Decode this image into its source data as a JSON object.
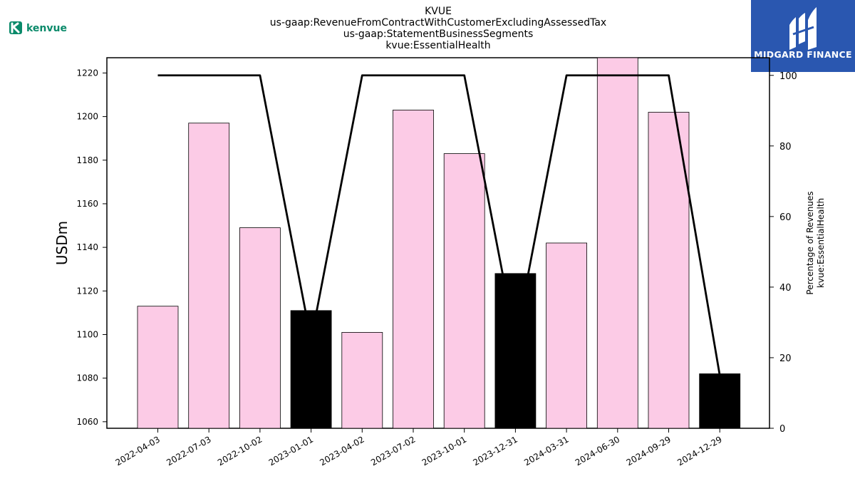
{
  "logos": {
    "left_brand": "kenvue",
    "right_brand": "MIDGARD FINANCE",
    "right_brand_color": "#2a57b0",
    "left_brand_color": "#0a8a6a"
  },
  "chart_data": {
    "type": "bar",
    "title_lines": [
      "KVUE",
      "us-gaap:RevenueFromContractWithCustomerExcludingAssessedTax",
      "us-gaap:StatementBusinessSegments",
      "kvue:EssentialHealth"
    ],
    "ylabel": "USDm",
    "ylabel_right": [
      "Percentage of Revenues",
      "kvue:EssentialHealth"
    ],
    "categories": [
      "2022-04-03",
      "2022-07-03",
      "2022-10-02",
      "2023-01-01",
      "2023-04-02",
      "2023-07-02",
      "2023-10-01",
      "2023-12-31",
      "2024-03-31",
      "2024-06-30",
      "2024-09-29",
      "2024-12-29"
    ],
    "series": [
      {
        "type": "bar",
        "values": [
          1113,
          1197,
          1149,
          1111,
          1101,
          1203,
          1183,
          1128,
          1142,
          1228,
          1202,
          1082
        ],
        "colors": [
          "#fccbe6",
          "#fccbe6",
          "#fccbe6",
          "#000000",
          "#fccbe6",
          "#fccbe6",
          "#fccbe6",
          "#000000",
          "#fccbe6",
          "#fccbe6",
          "#fccbe6",
          "#000000"
        ]
      },
      {
        "type": "line",
        "axis": "right",
        "color": "#000000",
        "values": [
          100,
          100,
          100,
          25,
          100,
          100,
          100,
          25,
          100,
          100,
          100,
          15
        ]
      }
    ],
    "ylim": [
      1057,
      1227
    ],
    "y_ticks": [
      1060,
      1080,
      1100,
      1120,
      1140,
      1160,
      1180,
      1200,
      1220
    ],
    "ylim_right": [
      0,
      105
    ],
    "y_ticks_right": [
      0,
      20,
      40,
      60,
      80,
      100
    ],
    "grid": false
  }
}
